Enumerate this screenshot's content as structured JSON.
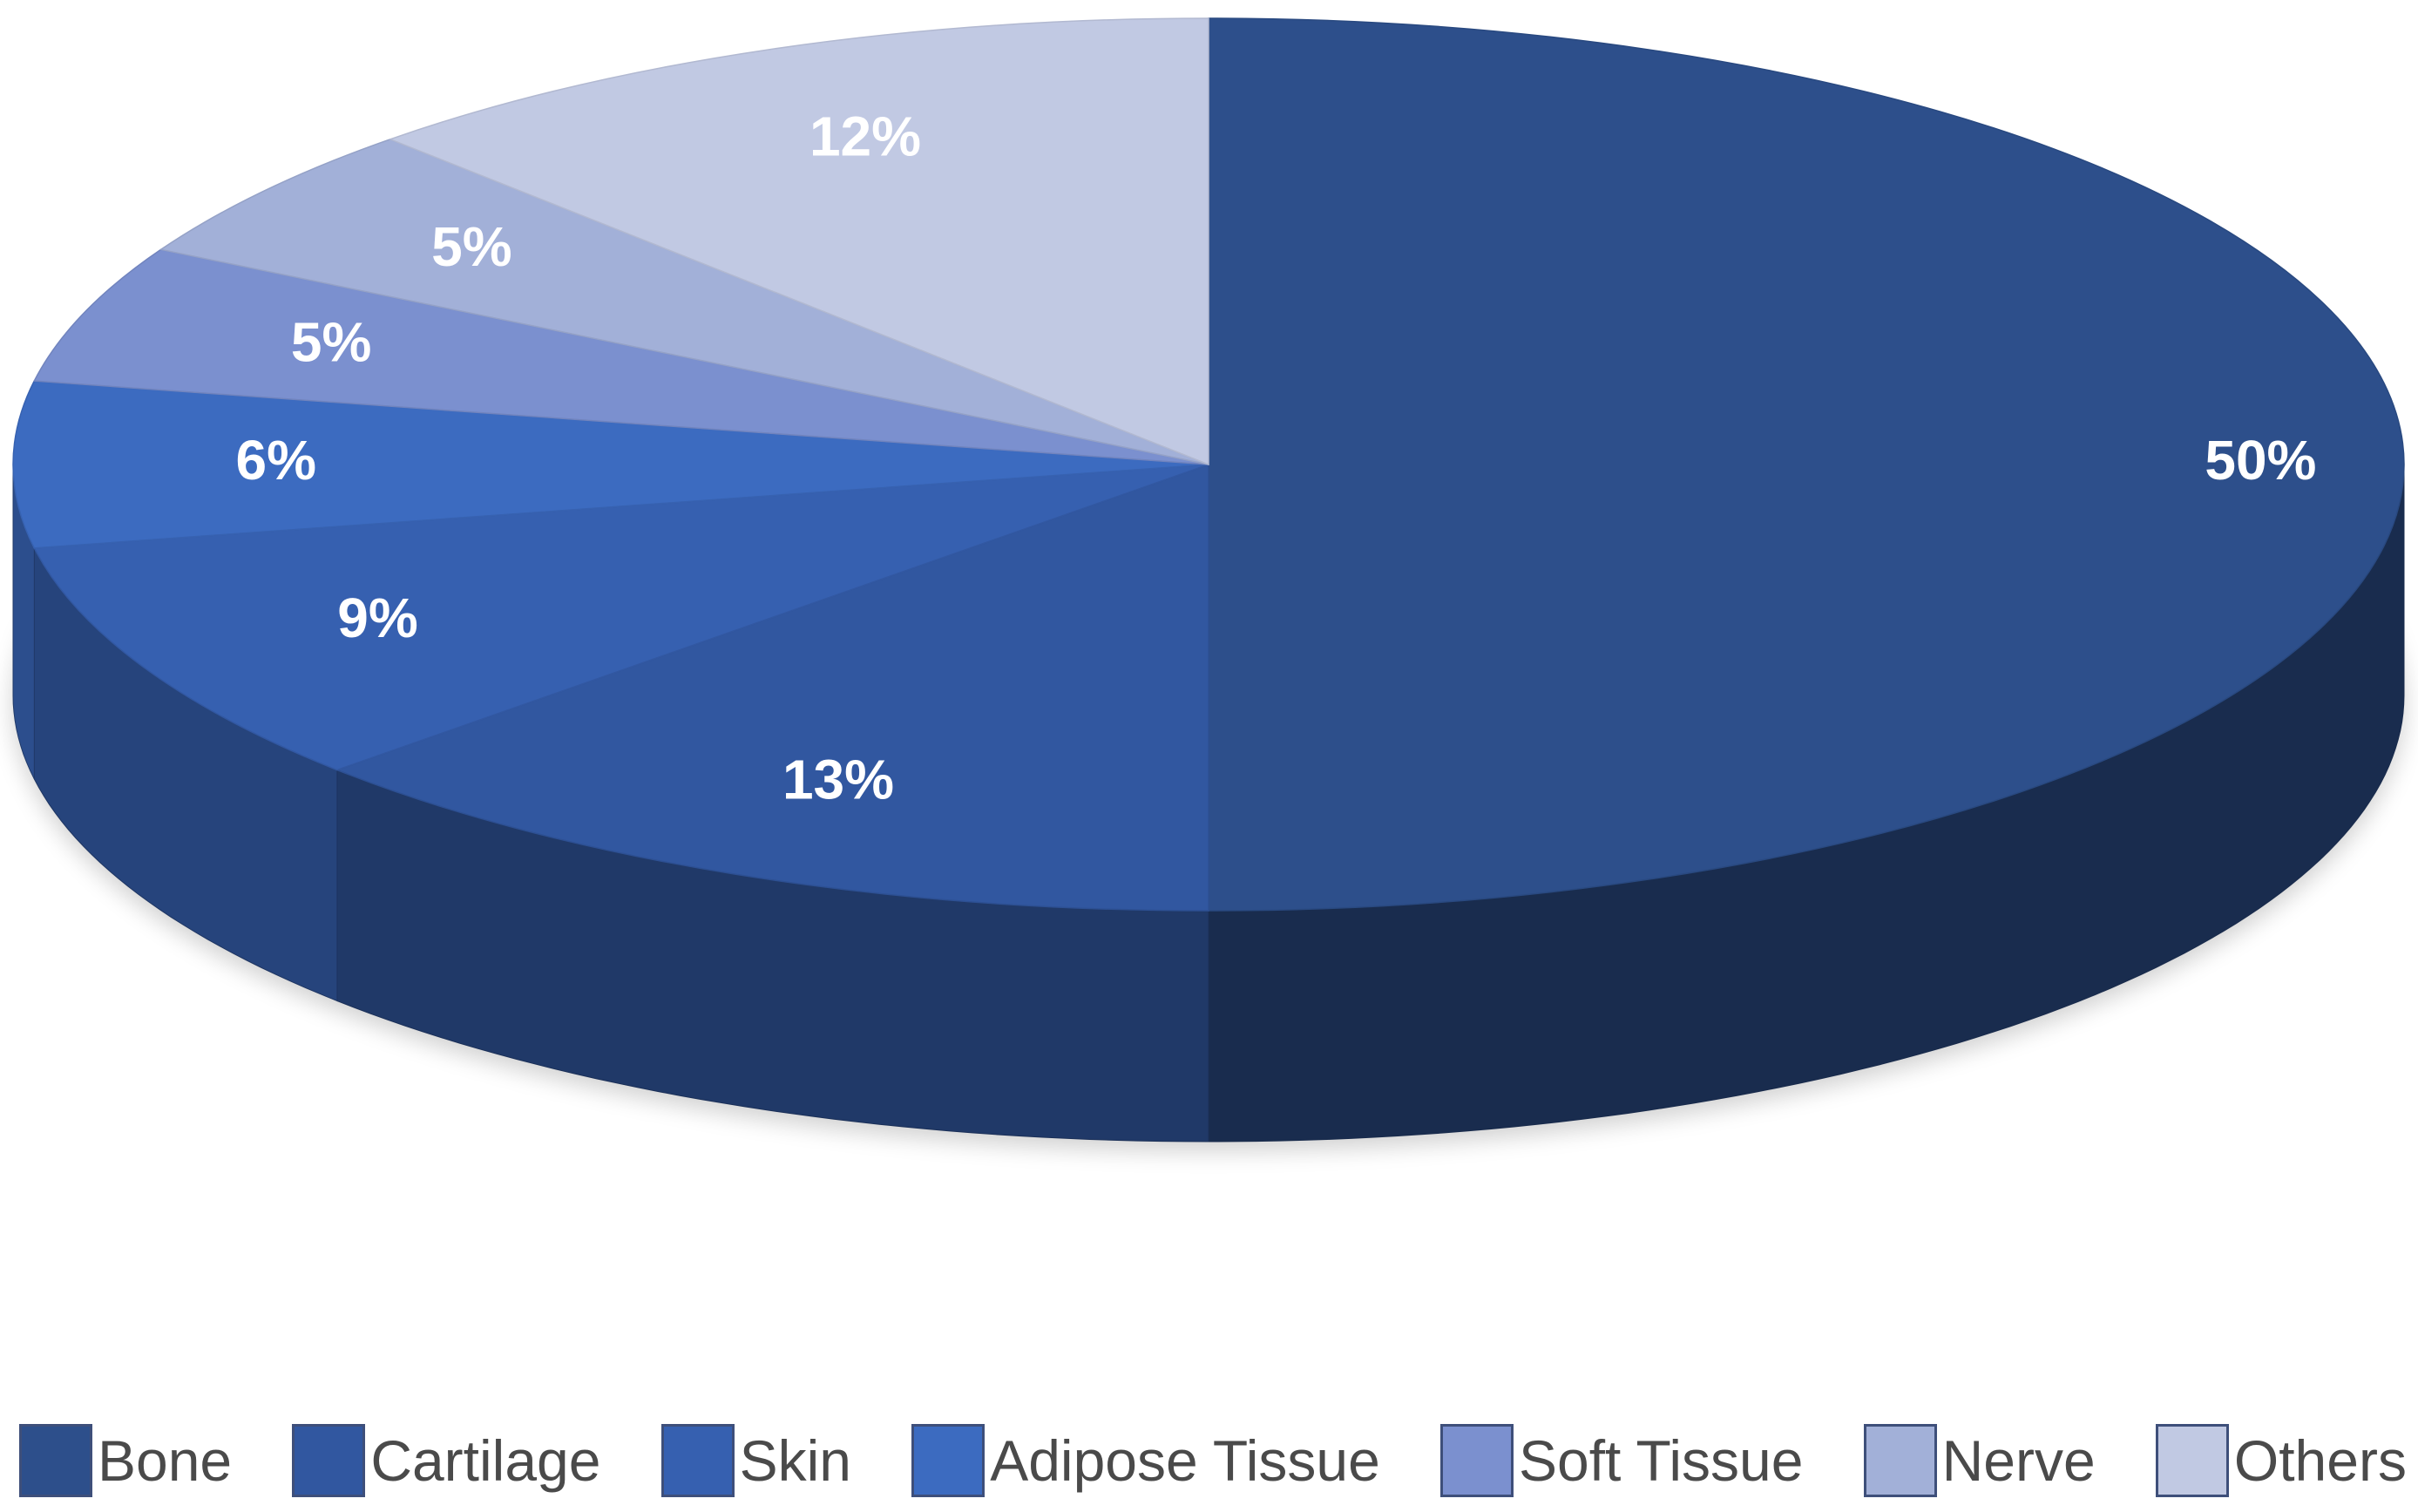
{
  "chart_data": {
    "type": "pie",
    "style": "3d-tilted",
    "start": "12 o'clock, clockwise",
    "slices": [
      {
        "label": "Bone",
        "value": 50,
        "value_label": "50%",
        "color": "#2d4f8b"
      },
      {
        "label": "Cartilage",
        "value": 13,
        "value_label": "13%",
        "color": "#3157a0"
      },
      {
        "label": "Skin",
        "value": 9,
        "value_label": "9%",
        "color": "#3660b0"
      },
      {
        "label": "Adipose Tissue",
        "value": 6,
        "value_label": "6%",
        "color": "#3c6bc0"
      },
      {
        "label": "Soft Tissue",
        "value": 5,
        "value_label": "5%",
        "color": "#7b90cf"
      },
      {
        "label": "Nerve",
        "value": 5,
        "value_label": "5%",
        "color": "#a2b0d8"
      },
      {
        "label": "Others",
        "value": 12,
        "value_label": "12%",
        "color": "#c1c9e3"
      }
    ],
    "legend": {
      "position": "bottom",
      "items": [
        "Bone",
        "Cartilage",
        "Skin",
        "Adipose Tissue",
        "Soft Tissue",
        "Nerve",
        "Others"
      ]
    }
  }
}
